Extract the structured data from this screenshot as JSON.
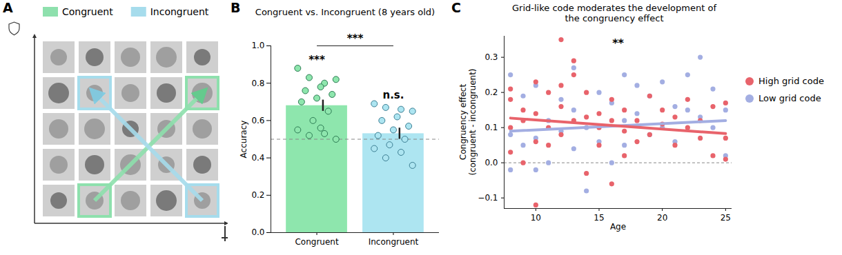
{
  "diagram": {
    "panel": "A",
    "legend": [
      {
        "name": "Congruent",
        "color": "#8ee0ad"
      },
      {
        "name": "Incongruent",
        "color": "#a6dcec"
      }
    ],
    "rows": 5,
    "columns": 5,
    "congruent": {
      "from": [
        5,
        2
      ],
      "to": [
        2,
        5
      ]
    },
    "incongruent": {
      "from": [
        5,
        5
      ],
      "to": [
        2,
        2
      ]
    }
  },
  "chart_data": [
    {
      "panel": "B",
      "type": "bar",
      "title": "Congruent vs. Incongruent (8 years old)",
      "y_label": "Accuracy",
      "categories": [
        "Congruent",
        "Incongruent"
      ],
      "values": [
        0.68,
        0.53
      ],
      "errors": [
        0.03,
        0.03
      ],
      "colors": [
        "#8ee6ad",
        "#ade5f1"
      ],
      "points": [
        [
          0.88,
          0.8,
          0.83,
          0.82,
          0.78,
          0.76,
          0.74,
          0.72,
          0.7,
          0.65,
          0.6,
          0.55,
          0.53,
          0.52,
          0.5,
          0.56
        ],
        [
          0.69,
          0.66,
          0.67,
          0.65,
          0.62,
          0.6,
          0.57,
          0.55,
          0.52,
          0.5,
          0.47,
          0.45,
          0.43,
          0.4,
          0.36
        ]
      ],
      "ylim": [
        0,
        1.0
      ],
      "yticks": [
        {
          "value": 0,
          "label": "0.0"
        },
        {
          "value": 0.2,
          "label": "0.2"
        },
        {
          "value": 0.4,
          "label": "0.4"
        },
        {
          "value": 0.6,
          "label": "0.6"
        },
        {
          "value": 0.8,
          "label": "0.8"
        },
        {
          "value": 1.0,
          "label": "1.0"
        }
      ],
      "reference_line": 0.5,
      "annotations": [
        {
          "text": "***",
          "category": "Congruent"
        },
        {
          "text": "n.s.",
          "category": "Incongruent"
        },
        {
          "text": "***",
          "between": [
            "Congruent",
            "Incongruent"
          ]
        }
      ]
    },
    {
      "panel": "C",
      "type": "scatter",
      "title": "Grid-like code moderates the development of\nthe congruency effect",
      "x_label": "Age",
      "y_label": "Congruency effect\n(congruent - incongruent)",
      "xlim": [
        7.5,
        25.5
      ],
      "xticks": [
        10,
        15,
        20,
        25
      ],
      "ylim": [
        -0.13,
        0.36
      ],
      "yticks": [
        {
          "value": -0.1,
          "label": "−0.1"
        },
        {
          "value": 0,
          "label": "0.0"
        },
        0.1,
        0.2,
        0.3
      ],
      "reference_line": 0,
      "legend": "right",
      "series": [
        {
          "name": "High grid code",
          "color": "#e8636b",
          "x": [
            8,
            8,
            8,
            8,
            9,
            9,
            9,
            10,
            10,
            10,
            10,
            11,
            11,
            11,
            12,
            12,
            12,
            12,
            13,
            13,
            13,
            14,
            14,
            14,
            15,
            15,
            15,
            16,
            16,
            16,
            17,
            17,
            17,
            18,
            18,
            19,
            19,
            20,
            20,
            21,
            21,
            22,
            22,
            23,
            23,
            24,
            24,
            25,
            25,
            25
          ],
          "values": [
            0.21,
            0.18,
            0.1,
            0.03,
            0.15,
            0.12,
            0.0,
            0.23,
            0.14,
            -0.12,
            0.06,
            0.2,
            0.1,
            0.05,
            0.35,
            0.22,
            0.16,
            0.08,
            0.29,
            0.25,
            0.12,
            0.2,
            0.13,
            -0.03,
            0.14,
            0.1,
            0.05,
            0.18,
            0.12,
            -0.06,
            0.15,
            0.09,
            0.02,
            0.12,
            0.06,
            0.19,
            0.08,
            0.15,
            0.11,
            0.13,
            0.05,
            0.18,
            0.1,
            0.12,
            0.07,
            0.16,
            0.02,
            0.17,
            0.07,
            0.01
          ],
          "fit": {
            "x": [
              8,
              25
            ],
            "y": [
              0.127,
              0.083
            ]
          }
        },
        {
          "name": "Low grid code",
          "color": "#a3aee2",
          "x": [
            8,
            8,
            8,
            9,
            9,
            10,
            10,
            10,
            11,
            11,
            12,
            12,
            13,
            13,
            13,
            14,
            14,
            15,
            15,
            16,
            16,
            17,
            17,
            17,
            18,
            18,
            19,
            19,
            20,
            20,
            21,
            21,
            22,
            22,
            23,
            23,
            24,
            24,
            25,
            25
          ],
          "values": [
            0.25,
            0.08,
            -0.02,
            0.19,
            0.05,
            0.22,
            0.07,
            -0.02,
            0.12,
            0.0,
            0.18,
            0.09,
            0.27,
            0.15,
            0.04,
            0.1,
            -0.08,
            0.2,
            0.06,
            0.17,
            0.0,
            0.25,
            0.12,
            0.05,
            0.14,
            0.22,
            0.19,
            0.08,
            0.23,
            0.1,
            0.16,
            0.06,
            0.15,
            0.25,
            0.3,
            0.13,
            0.21,
            0.1,
            0.15,
            0.02
          ],
          "fit": {
            "x": [
              8,
              25
            ],
            "y": [
              0.09,
              0.12
            ]
          }
        }
      ],
      "annotations": [
        {
          "text": "**"
        }
      ]
    }
  ]
}
